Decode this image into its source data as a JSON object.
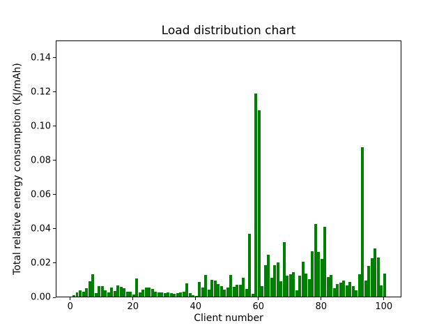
{
  "chart_data": {
    "type": "bar",
    "title": "Load distribution chart",
    "xlabel": "Client number",
    "ylabel": "Total relative energy consumption (KJ/mAh)",
    "bar_color": "#008000",
    "grid": false,
    "legend": null,
    "xlim": [
      -4.6,
      105.6
    ],
    "ylim": [
      0,
      0.15
    ],
    "x_ticks": [
      0,
      20,
      40,
      60,
      80,
      100
    ],
    "x_tick_labels": [
      "0",
      "20",
      "40",
      "60",
      "80",
      "100"
    ],
    "y_ticks": [
      0.0,
      0.02,
      0.04,
      0.06,
      0.08,
      0.1,
      0.12,
      0.14
    ],
    "y_tick_labels": [
      "0.00",
      "0.02",
      "0.04",
      "0.06",
      "0.08",
      "0.10",
      "0.12",
      "0.14"
    ],
    "x": [
      1,
      2,
      3,
      4,
      5,
      6,
      7,
      8,
      9,
      10,
      11,
      12,
      13,
      14,
      15,
      16,
      17,
      18,
      19,
      20,
      21,
      22,
      23,
      24,
      25,
      26,
      27,
      28,
      29,
      30,
      31,
      32,
      33,
      34,
      35,
      36,
      37,
      38,
      39,
      40,
      41,
      42,
      43,
      44,
      45,
      46,
      47,
      48,
      49,
      50,
      51,
      52,
      53,
      54,
      55,
      56,
      57,
      58,
      59,
      60,
      61,
      62,
      63,
      64,
      65,
      66,
      67,
      68,
      69,
      70,
      71,
      72,
      73,
      74,
      75,
      76,
      77,
      78,
      79,
      80,
      81,
      82,
      83,
      84,
      85,
      86,
      87,
      88,
      89,
      90,
      91,
      92,
      93,
      94,
      95,
      96,
      97,
      98,
      99,
      100
    ],
    "values": [
      0.0008,
      0.0025,
      0.0038,
      0.0028,
      0.0049,
      0.009,
      0.0131,
      0.0019,
      0.0062,
      0.0062,
      0.0038,
      0.0025,
      0.0052,
      0.0034,
      0.0065,
      0.0057,
      0.0048,
      0.003,
      0.0027,
      0.0014,
      0.0105,
      0.0025,
      0.0041,
      0.0053,
      0.0055,
      0.0045,
      0.003,
      0.0025,
      0.0025,
      0.002,
      0.0025,
      0.002,
      0.0018,
      0.0022,
      0.0025,
      0.0028,
      0.0078,
      0.0022,
      0.001,
      0.0005,
      0.0085,
      0.0052,
      0.0126,
      0.0041,
      0.0098,
      0.0093,
      0.0075,
      0.0061,
      0.0041,
      0.0052,
      0.0126,
      0.0057,
      0.0068,
      0.0071,
      0.0109,
      0.0044,
      0.0368,
      0.0015,
      0.1188,
      0.109,
      0.0061,
      0.0184,
      0.0243,
      0.0109,
      0.0185,
      0.0198,
      0.0089,
      0.0318,
      0.0123,
      0.013,
      0.0143,
      0.0038,
      0.0123,
      0.0205,
      0.0135,
      0.01,
      0.0265,
      0.0425,
      0.026,
      0.0222,
      0.0409,
      0.0113,
      0.0127,
      0.005,
      0.0075,
      0.0082,
      0.0095,
      0.0065,
      0.0085,
      0.006,
      0.0038,
      0.013,
      0.0873,
      0.0095,
      0.018,
      0.0225,
      0.028,
      0.023,
      0.0065,
      0.0136
    ],
    "bar_width_units": 0.8
  }
}
